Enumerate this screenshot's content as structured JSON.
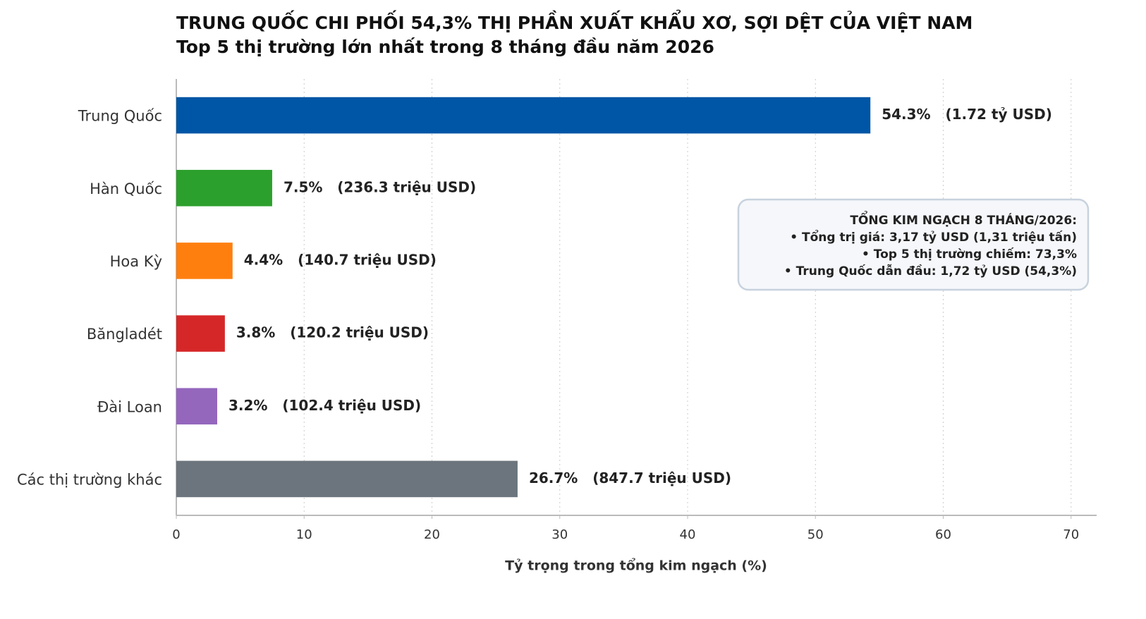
{
  "chart_data": {
    "type": "barh",
    "title": "TRUNG QUỐC CHI PHỐI 54,3% THỊ PHẦN XUẤT KHẨU XƠ, SỢI DỆT CỦA VIỆT NAM",
    "subtitle": "Top 5 thị trường lớn nhất trong 8 tháng đầu năm 2026",
    "xlabel": "Tỷ trọng trong tổng kim ngạch (%)",
    "categories": [
      "Trung Quốc",
      "Hàn Quốc",
      "Hoa Kỳ",
      "Băngladét",
      "Đài Loan",
      "Các thị trường khác"
    ],
    "values": [
      54.3,
      7.5,
      4.4,
      3.8,
      3.2,
      26.7
    ],
    "value_labels": [
      "54.3%   (1.72 tỷ USD)",
      "7.5%   (236.3 triệu USD)",
      "4.4%   (140.7 triệu USD)",
      "3.8%   (120.2 triệu USD)",
      "3.2%   (102.4 triệu USD)",
      "26.7%   (847.7 triệu USD)"
    ],
    "colors": [
      "#0056a6",
      "#2ca02c",
      "#ff7f0e",
      "#d62728",
      "#9467bd",
      "#6c757d"
    ],
    "xlim": [
      0,
      72
    ],
    "xticks": [
      0,
      10,
      20,
      30,
      40,
      50,
      60,
      70
    ],
    "grid": true,
    "annotation": [
      "TỔNG KIM NGẠCH 8 THÁNG/2026:",
      "• Tổng trị giá: 3,17 tỷ USD (1,31 triệu tấn)",
      "• Top 5 thị trường chiếm: 73,3%",
      "• Trung Quốc dẫn đầu: 1,72 tỷ USD (54,3%)"
    ]
  }
}
